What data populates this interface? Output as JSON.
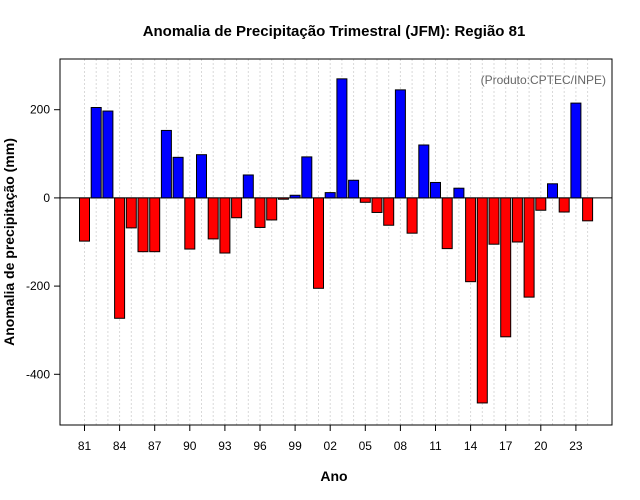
{
  "chart_data": {
    "type": "bar",
    "title": "Anomalia de Precipitação Trimestral (JFM): Região 81",
    "xlabel": "Ano",
    "ylabel": "Anomalia de precipitação (mm)",
    "annotation": "(Produto:CPTEC/INPE)",
    "ylim": [
      -515,
      315
    ],
    "yticks": [
      -400,
      -200,
      0,
      200
    ],
    "xtick_years": [
      1981,
      1984,
      1987,
      1990,
      1993,
      1996,
      1999,
      2002,
      2005,
      2008,
      2011,
      2014,
      2017,
      2020,
      2023
    ],
    "xtick_labels": [
      "81",
      "84",
      "87",
      "90",
      "93",
      "96",
      "99",
      "02",
      "05",
      "08",
      "11",
      "14",
      "17",
      "20",
      "23"
    ],
    "positive_color": "#0000ff",
    "negative_color": "#ff0000",
    "x": [
      1981,
      1982,
      1983,
      1984,
      1985,
      1986,
      1987,
      1988,
      1989,
      1990,
      1991,
      1992,
      1993,
      1994,
      1995,
      1996,
      1997,
      1998,
      1999,
      2000,
      2001,
      2002,
      2003,
      2004,
      2005,
      2006,
      2007,
      2008,
      2009,
      2010,
      2011,
      2012,
      2013,
      2014,
      2015,
      2016,
      2017,
      2018,
      2019,
      2020,
      2021,
      2022,
      2023,
      2024
    ],
    "values": [
      -98,
      205,
      197,
      -273,
      -68,
      -122,
      -122,
      153,
      92,
      -116,
      98,
      -93,
      -125,
      -45,
      52,
      -67,
      -50,
      -3,
      6,
      93,
      -205,
      12,
      270,
      40,
      -10,
      -33,
      -62,
      245,
      -80,
      120,
      35,
      -115,
      22,
      -190,
      -465,
      -105,
      -315,
      -100,
      -225,
      -28,
      32,
      -32,
      215,
      -52
    ]
  }
}
